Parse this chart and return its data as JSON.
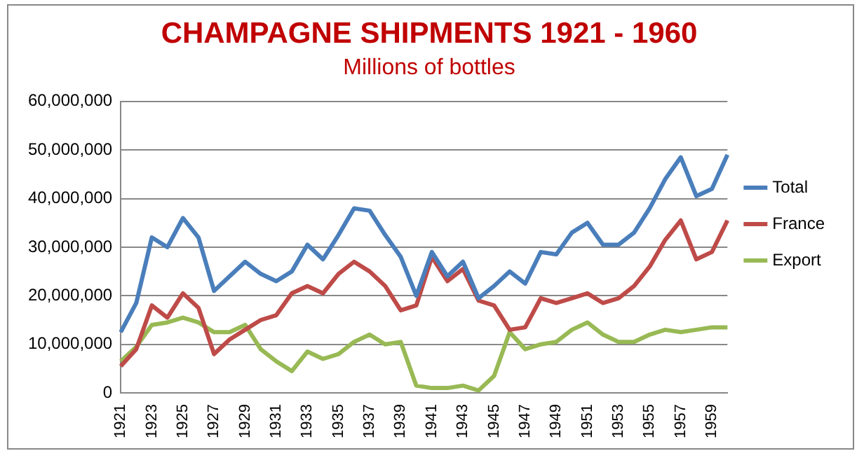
{
  "chart_data": {
    "type": "line",
    "title": "CHAMPAGNE SHIPMENTS 1921 - 1960",
    "subtitle": "Millions of bottles",
    "categories": [
      "1921",
      null,
      "1923",
      null,
      "1925",
      null,
      "1927",
      null,
      "1929",
      null,
      "1931",
      null,
      "1933",
      null,
      "1935",
      null,
      "1937",
      null,
      "1939",
      null,
      "1941",
      null,
      "1943",
      null,
      "1945",
      null,
      "1947",
      null,
      "1949",
      null,
      "1951",
      null,
      "1953",
      null,
      "1955",
      null,
      "1957",
      null,
      "1959",
      null
    ],
    "series": [
      {
        "name": "Total",
        "color": "#4a7ebb",
        "values": [
          12500000,
          18500000,
          32000000,
          30000000,
          36000000,
          32000000,
          21000000,
          24000000,
          27000000,
          24500000,
          23000000,
          25000000,
          30500000,
          27500000,
          32500000,
          38000000,
          37500000,
          32500000,
          28000000,
          20000000,
          29000000,
          24000000,
          27000000,
          19500000,
          22000000,
          25000000,
          22500000,
          29000000,
          28500000,
          33000000,
          35000000,
          30500000,
          30500000,
          33000000,
          38000000,
          44000000,
          48500000,
          40500000,
          42000000,
          49000000
        ]
      },
      {
        "name": "France",
        "color": "#be4b48",
        "values": [
          5500000,
          9000000,
          18000000,
          15500000,
          20500000,
          17500000,
          8000000,
          11000000,
          13000000,
          15000000,
          16000000,
          20500000,
          22000000,
          20500000,
          24500000,
          27000000,
          25000000,
          22000000,
          17000000,
          18000000,
          28000000,
          23000000,
          25500000,
          19000000,
          18000000,
          13000000,
          13500000,
          19500000,
          18500000,
          19500000,
          20500000,
          18500000,
          19500000,
          22000000,
          26000000,
          31500000,
          35500000,
          27500000,
          29000000,
          35500000
        ]
      },
      {
        "name": "Export",
        "color": "#98b954",
        "values": [
          6500000,
          9500000,
          14000000,
          14500000,
          15500000,
          14500000,
          12500000,
          12500000,
          14000000,
          9000000,
          6500000,
          4500000,
          8500000,
          7000000,
          8000000,
          10500000,
          12000000,
          10000000,
          10500000,
          1500000,
          1000000,
          1000000,
          1500000,
          500000,
          3500000,
          12500000,
          9000000,
          10000000,
          10500000,
          13000000,
          14500000,
          12000000,
          10500000,
          10500000,
          12000000,
          13000000,
          12500000,
          13000000,
          13500000,
          13500000
        ]
      }
    ],
    "ylim": [
      0,
      60000000
    ],
    "yticks": [
      0,
      {
        "value": 10000000,
        "label": "10,000,000"
      },
      {
        "value": 20000000,
        "label": "20,000,000"
      },
      {
        "value": 30000000,
        "label": "30,000,000"
      },
      {
        "value": 40000000,
        "label": "40,000,000"
      },
      {
        "value": 50000000,
        "label": "50,000,000"
      },
      {
        "value": 60000000,
        "label": "60,000,000"
      }
    ],
    "grid": "y",
    "legend": "right",
    "marker": "none",
    "line_style": "solid"
  }
}
